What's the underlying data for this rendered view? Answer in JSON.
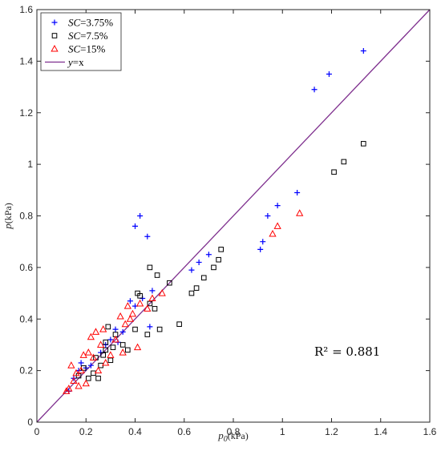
{
  "chart_data": {
    "type": "scatter",
    "xlabel": {
      "base": "p",
      "sub": "0",
      "unit": "(kPa)"
    },
    "ylabel": {
      "base": "p",
      "unit": "(kPa)"
    },
    "xlim": [
      0,
      1.6
    ],
    "ylim": [
      0,
      1.6
    ],
    "xticks": [
      "0",
      "0.2",
      "0.4",
      "0.6",
      "0.8",
      "1",
      "1.2",
      "1.4",
      "1.6"
    ],
    "yticks": [
      "0",
      "0.2",
      "0.4",
      "0.6",
      "0.8",
      "1",
      "1.2",
      "1.4",
      "1.6"
    ],
    "grid": false,
    "legend_position": "top-left",
    "annotation": "R² = 0.881",
    "reference_line": {
      "name_italic": "y",
      "name_rest": "=x",
      "color": "#7e2f8e",
      "from": [
        0,
        0
      ],
      "to": [
        1.6,
        1.6
      ]
    },
    "series": [
      {
        "name_italic": "SC",
        "name_rest": "=3.75%",
        "marker": "plus",
        "color": "#0000ff",
        "points": [
          [
            0.13,
            0.12
          ],
          [
            0.15,
            0.17
          ],
          [
            0.17,
            0.2
          ],
          [
            0.18,
            0.23
          ],
          [
            0.2,
            0.21
          ],
          [
            0.22,
            0.22
          ],
          [
            0.26,
            0.27
          ],
          [
            0.28,
            0.3
          ],
          [
            0.3,
            0.32
          ],
          [
            0.32,
            0.36
          ],
          [
            0.33,
            0.31
          ],
          [
            0.35,
            0.35
          ],
          [
            0.38,
            0.47
          ],
          [
            0.4,
            0.76
          ],
          [
            0.4,
            0.45
          ],
          [
            0.42,
            0.8
          ],
          [
            0.43,
            0.48
          ],
          [
            0.45,
            0.72
          ],
          [
            0.46,
            0.37
          ],
          [
            0.47,
            0.51
          ],
          [
            0.63,
            0.59
          ],
          [
            0.66,
            0.62
          ],
          [
            0.7,
            0.65
          ],
          [
            0.91,
            0.67
          ],
          [
            0.92,
            0.7
          ],
          [
            0.94,
            0.8
          ],
          [
            0.98,
            0.84
          ],
          [
            1.06,
            0.89
          ],
          [
            1.13,
            1.29
          ],
          [
            1.19,
            1.35
          ],
          [
            1.33,
            1.44
          ]
        ]
      },
      {
        "name_italic": "SC",
        "name_rest": "=7.5%",
        "marker": "square",
        "color": "#000000",
        "points": [
          [
            0.17,
            0.18
          ],
          [
            0.19,
            0.21
          ],
          [
            0.21,
            0.17
          ],
          [
            0.23,
            0.19
          ],
          [
            0.24,
            0.25
          ],
          [
            0.25,
            0.17
          ],
          [
            0.26,
            0.22
          ],
          [
            0.27,
            0.26
          ],
          [
            0.28,
            0.31
          ],
          [
            0.28,
            0.28
          ],
          [
            0.29,
            0.37
          ],
          [
            0.3,
            0.24
          ],
          [
            0.31,
            0.29
          ],
          [
            0.32,
            0.34
          ],
          [
            0.35,
            0.3
          ],
          [
            0.37,
            0.28
          ],
          [
            0.4,
            0.36
          ],
          [
            0.41,
            0.5
          ],
          [
            0.42,
            0.49
          ],
          [
            0.45,
            0.34
          ],
          [
            0.46,
            0.6
          ],
          [
            0.46,
            0.46
          ],
          [
            0.48,
            0.44
          ],
          [
            0.49,
            0.57
          ],
          [
            0.5,
            0.36
          ],
          [
            0.54,
            0.54
          ],
          [
            0.58,
            0.38
          ],
          [
            0.63,
            0.5
          ],
          [
            0.65,
            0.52
          ],
          [
            0.68,
            0.56
          ],
          [
            0.72,
            0.6
          ],
          [
            0.74,
            0.63
          ],
          [
            0.75,
            0.67
          ],
          [
            1.21,
            0.97
          ],
          [
            1.25,
            1.01
          ],
          [
            1.33,
            1.08
          ]
        ]
      },
      {
        "name_italic": "SC",
        "name_rest": "=15%",
        "marker": "triangle",
        "color": "#ff0000",
        "points": [
          [
            0.12,
            0.12
          ],
          [
            0.13,
            0.13
          ],
          [
            0.14,
            0.22
          ],
          [
            0.15,
            0.16
          ],
          [
            0.16,
            0.19
          ],
          [
            0.17,
            0.14
          ],
          [
            0.18,
            0.2
          ],
          [
            0.19,
            0.26
          ],
          [
            0.2,
            0.15
          ],
          [
            0.21,
            0.27
          ],
          [
            0.22,
            0.33
          ],
          [
            0.23,
            0.25
          ],
          [
            0.24,
            0.35
          ],
          [
            0.25,
            0.2
          ],
          [
            0.26,
            0.3
          ],
          [
            0.27,
            0.36
          ],
          [
            0.28,
            0.23
          ],
          [
            0.3,
            0.26
          ],
          [
            0.32,
            0.32
          ],
          [
            0.34,
            0.41
          ],
          [
            0.35,
            0.27
          ],
          [
            0.36,
            0.38
          ],
          [
            0.37,
            0.45
          ],
          [
            0.38,
            0.4
          ],
          [
            0.39,
            0.42
          ],
          [
            0.41,
            0.29
          ],
          [
            0.42,
            0.46
          ],
          [
            0.45,
            0.44
          ],
          [
            0.47,
            0.48
          ],
          [
            0.51,
            0.5
          ],
          [
            0.96,
            0.73
          ],
          [
            0.98,
            0.76
          ],
          [
            1.07,
            0.81
          ]
        ]
      }
    ]
  }
}
